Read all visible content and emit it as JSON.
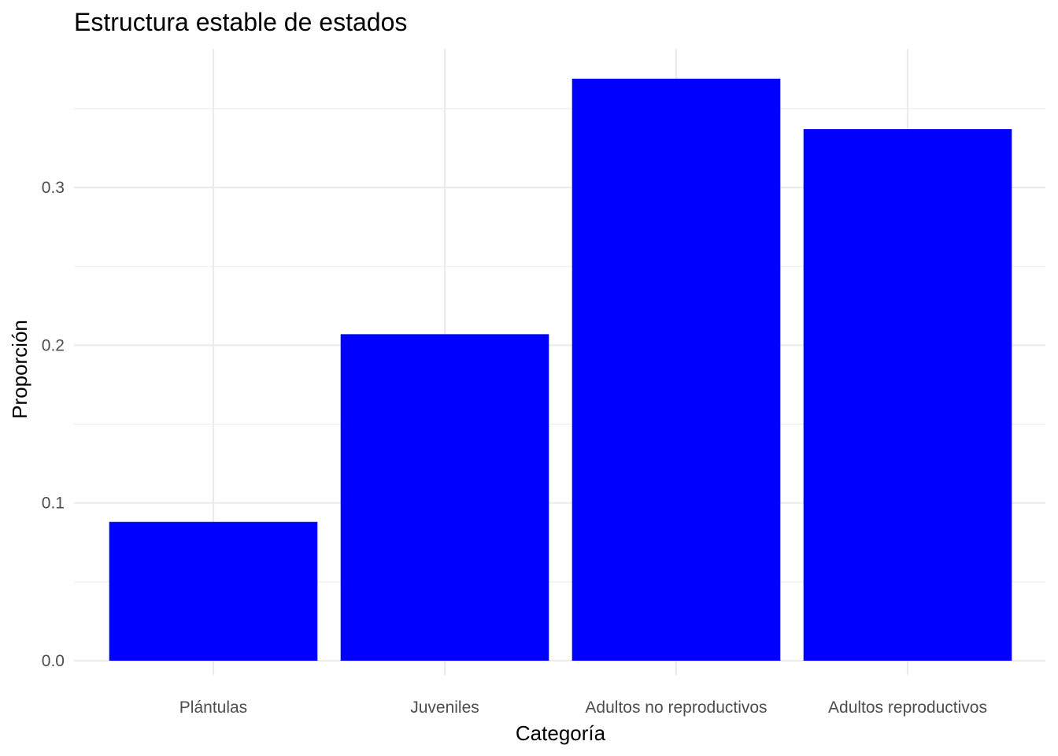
{
  "chart_data": {
    "type": "bar",
    "title": "Estructura estable de estados",
    "xlabel": "Categoría",
    "ylabel": "Proporción",
    "categories": [
      "Plántulas",
      "Juveniles",
      "Adultos no reproductivos",
      "Adultos reproductivos"
    ],
    "values": [
      0.088,
      0.207,
      0.369,
      0.337
    ],
    "ylim": [
      0,
      0.38
    ],
    "yticks": [
      0,
      0.1,
      0.2,
      0.3
    ],
    "ytick_labels": [
      "0.0",
      "0.1",
      "0.2",
      "0.3"
    ],
    "grid": true,
    "bar_color": "#0000ff"
  }
}
